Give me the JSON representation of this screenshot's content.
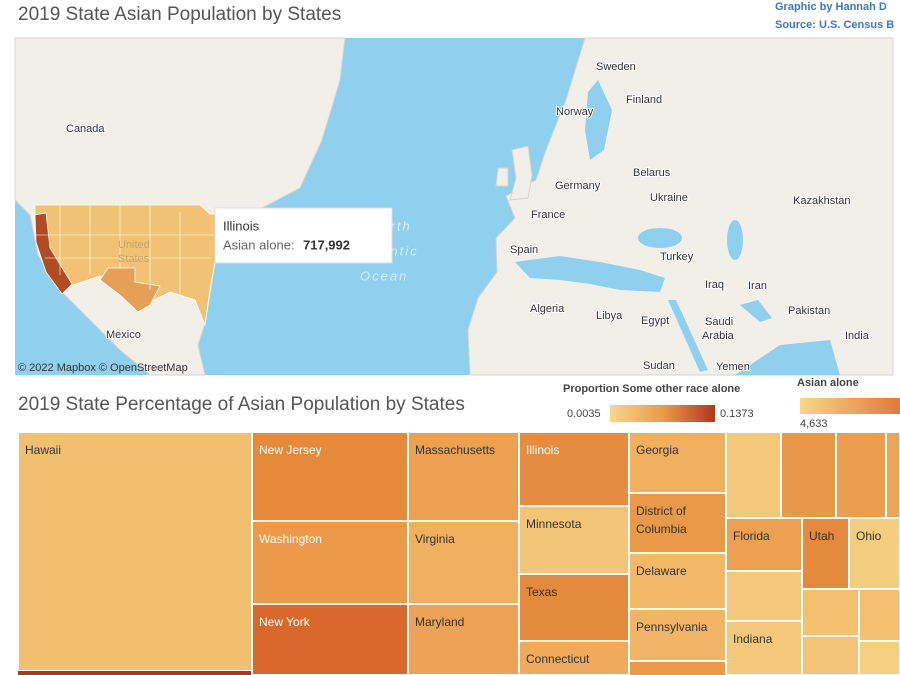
{
  "header": {
    "title": "2019 State Asian Population by States",
    "credits": [
      "Graphic by Hannah D",
      "Source: U.S. Census B"
    ]
  },
  "map": {
    "labels": [
      "Canada",
      "Sweden",
      "Norway",
      "Finland",
      "Belarus",
      "Germany",
      "Ukraine",
      "Kazakhstan",
      "France",
      "Spain",
      "Turkey",
      "Iraq",
      "Iran",
      "Algeria",
      "Libya",
      "Egypt",
      "Saudi",
      "Arabia",
      "Pakistan",
      "India",
      "Mexico",
      "Sudan",
      "Yemen"
    ],
    "faint_labels": [
      "United",
      "States",
      "North",
      "Atlantic",
      "Ocean"
    ],
    "attribution": "© 2022 Mapbox © OpenStreetMap",
    "tooltip": {
      "state": "Illinois",
      "field": "Asian alone:",
      "value": "717,992"
    }
  },
  "treemap": {
    "title": "2019 State Percentage of Asian Population by States",
    "color_legend": {
      "title": "Proportion Some other race alone",
      "min": "0.0035",
      "max": "0.1373"
    },
    "size_legend": {
      "title": "Asian alone",
      "min": "4,633"
    },
    "tiles": [
      "Hawaii",
      "New Jersey",
      "Washington",
      "New York",
      "Massachusetts",
      "Virginia",
      "Maryland",
      "Illinois",
      "Minnesota",
      "Texas",
      "Connecticut",
      "Georgia",
      "District of Columbia",
      "Delaware",
      "Pennsylvania",
      "Florida",
      "Utah",
      "Ohio",
      "Indiana"
    ]
  }
}
